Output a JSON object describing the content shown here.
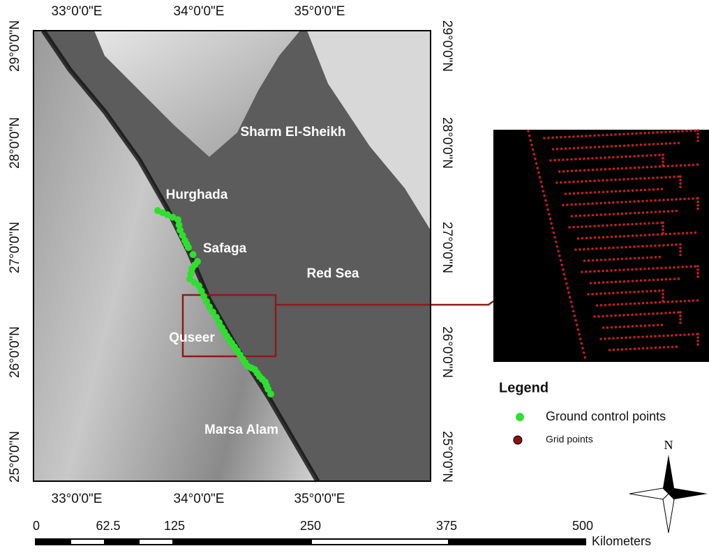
{
  "map": {
    "axis_labels": {
      "top": [
        "33°0'0\"E",
        "34°0'0\"E",
        "35°0'0\"E"
      ],
      "bottom": [
        "33°0'0\"E",
        "34°0'0\"E",
        "35°0'0\"E"
      ],
      "left": [
        "29°0'0\"N",
        "28°0'0\"N",
        "27°0'0\"N",
        "26°0'0\"N",
        "25°0'0\"N"
      ],
      "right": [
        "29°0'0\"N",
        "28°0'0\"N",
        "27°0'0\"N",
        "26°0'0\"N",
        "25°0'0\"N"
      ]
    },
    "places": [
      "Sharm El-Sheikh",
      "Hurghada",
      "Safaga",
      "Red Sea",
      "Quseer",
      "Marsa Alam"
    ],
    "legend": {
      "title": "Legend",
      "items": [
        "Ground control points",
        "Grid points"
      ]
    },
    "north": "N",
    "scale": {
      "labels": [
        "0",
        "62.5",
        "125",
        "250",
        "375",
        "500"
      ],
      "unit": "Kilometers"
    }
  }
}
